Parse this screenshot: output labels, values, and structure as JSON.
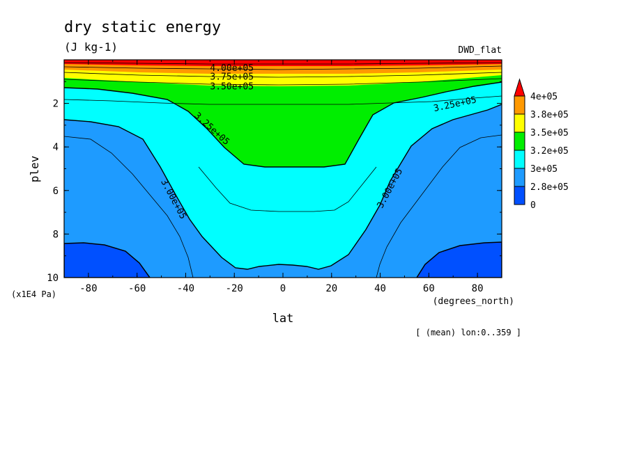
{
  "chart_data": {
    "type": "contour",
    "title": "dry static energy",
    "units": "(J kg-1)",
    "dataset_label": "DWD_flat",
    "xlabel": "lat",
    "xunits": "(degrees_north)",
    "ylabel": "plev",
    "yunits": "(x1E4 Pa)",
    "footer_note": "[ (mean) lon:0..359 ]",
    "x_ticks": [
      "-80",
      "-60",
      "-40",
      "-20",
      "0",
      "20",
      "40",
      "60",
      "80"
    ],
    "y_ticks": [
      "2",
      "4",
      "6",
      "8",
      "10"
    ],
    "xlim": [
      -90,
      90
    ],
    "ylim": [
      0,
      10
    ],
    "y_inverted": true,
    "contour_labels": [
      {
        "text": "4.00e+05",
        "lat": -21,
        "plev": 0.35
      },
      {
        "text": "3.75e+05",
        "lat": -21,
        "plev": 0.75
      },
      {
        "text": "3.50e+05",
        "lat": -21,
        "plev": 1.2
      },
      {
        "text": "3.25e+05",
        "lat": -30,
        "plev": 3.1
      },
      {
        "text": "3.00e+05",
        "lat": -46,
        "plev": 6.3
      },
      {
        "text": "3.00e+05",
        "lat": 45,
        "plev": 5.8
      },
      {
        "text": "3.25e+05",
        "lat": 71,
        "plev": 2.0
      }
    ],
    "colorbar": {
      "labels": [
        "4e+05",
        "3.8e+05",
        "3.5e+05",
        "3.2e+05",
        "3e+05",
        "2.8e+05",
        "0"
      ],
      "colors": [
        "#ff0000",
        "#ff9900",
        "#ffff00",
        "#00ee00",
        "#00ffff",
        "#1e9bff",
        "#0050ff"
      ]
    }
  }
}
